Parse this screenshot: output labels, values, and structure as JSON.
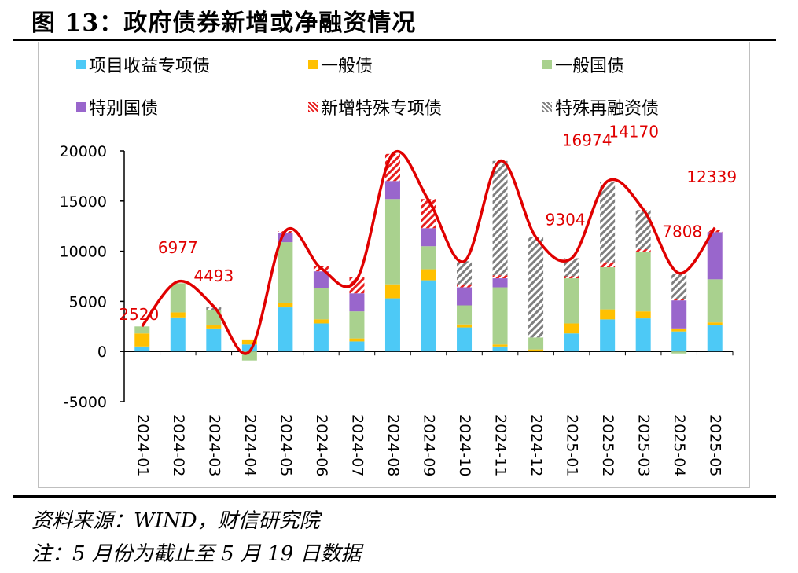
{
  "figure_title": "图 13：政府债券新增或净融资情况",
  "source_text": "资料来源：WIND，财信研究院",
  "note_text": "注：5 月份为截止至 5 月 19 日数据",
  "colors": {
    "project_bond": "#4dc9f6",
    "general_bond": "#ffc000",
    "treasury_bond": "#a9d18e",
    "special_treasury": "#9966cc",
    "new_special_bond": "#e81e1e",
    "refinance_bond": "#7f7f7f",
    "total_line": "#e00000",
    "label_text": "#e00000"
  },
  "legend": [
    {
      "label": "项目收益专项债",
      "swatch": "project_bond",
      "pattern": false
    },
    {
      "label": "一般债",
      "swatch": "general_bond",
      "pattern": false
    },
    {
      "label": "一般国债",
      "swatch": "treasury_bond",
      "pattern": false
    },
    {
      "label": "特别国债",
      "swatch": "special_treasury",
      "pattern": false
    },
    {
      "label": "新增特殊专项债",
      "swatch": "new_special_bond",
      "pattern": true
    },
    {
      "label": "特殊再融资债",
      "swatch": "refinance_bond",
      "pattern": true
    }
  ],
  "chart_data": {
    "type": "bar",
    "stacked": true,
    "categories": [
      "2024-01",
      "2024-02",
      "2024-03",
      "2024-04",
      "2024-05",
      "2024-06",
      "2024-07",
      "2024-08",
      "2024-09",
      "2024-10",
      "2024-11",
      "2024-12",
      "2025-01",
      "2025-02",
      "2025-03",
      "2025-04",
      "2025-05"
    ],
    "ylim": [
      -5000,
      20000
    ],
    "yticks": [
      -5000,
      0,
      5000,
      10000,
      15000,
      20000
    ],
    "grid": false,
    "legend_position": "top",
    "series": [
      {
        "name": "项目收益专项债",
        "key": "project_bond",
        "values": [
          500,
          3400,
          2300,
          700,
          4400,
          2800,
          1000,
          5300,
          7100,
          2400,
          500,
          0,
          1800,
          3200,
          3300,
          2000,
          2600
        ]
      },
      {
        "name": "一般债",
        "key": "general_bond",
        "values": [
          1300,
          500,
          300,
          500,
          400,
          400,
          300,
          1400,
          1100,
          300,
          200,
          200,
          1000,
          1000,
          700,
          300,
          300
        ]
      },
      {
        "name": "一般国债",
        "key": "treasury_bond",
        "values": [
          700,
          2900,
          1500,
          -900,
          6100,
          3100,
          2700,
          8500,
          2300,
          1900,
          5700,
          1200,
          4500,
          4200,
          5900,
          -200,
          4300
        ]
      },
      {
        "name": "特别国债",
        "key": "special_treasury",
        "values": [
          0,
          0,
          0,
          0,
          900,
          1700,
          1800,
          1800,
          1800,
          1800,
          900,
          0,
          0,
          0,
          0,
          2800,
          4700
        ]
      },
      {
        "name": "新增特殊专项债",
        "key": "new_special_bond",
        "values": [
          0,
          0,
          0,
          0,
          200,
          500,
          1600,
          2700,
          2900,
          300,
          300,
          0,
          200,
          500,
          300,
          100,
          200
        ]
      },
      {
        "name": "特殊再融资债",
        "key": "refinance_bond",
        "values": [
          0,
          0,
          300,
          0,
          0,
          0,
          0,
          0,
          0,
          2300,
          11400,
          10000,
          1800,
          8000,
          3900,
          2500,
          0
        ]
      }
    ],
    "total_line": {
      "values": [
        2520,
        6977,
        4493,
        0,
        12000,
        8300,
        7200,
        19700,
        15100,
        9000,
        19000,
        11400,
        9304,
        16974,
        14170,
        7808,
        12339
      ]
    },
    "data_labels": [
      {
        "index": 0,
        "text": "2520"
      },
      {
        "index": 1,
        "text": "6977"
      },
      {
        "index": 2,
        "text": "4493"
      },
      {
        "index": 12,
        "text": "9304"
      },
      {
        "index": 13,
        "text": "16974"
      },
      {
        "index": 13,
        "text": "14170",
        "at_index": 14
      },
      {
        "index": 15,
        "text": "7808"
      },
      {
        "index": 16,
        "text": "12339"
      }
    ]
  }
}
